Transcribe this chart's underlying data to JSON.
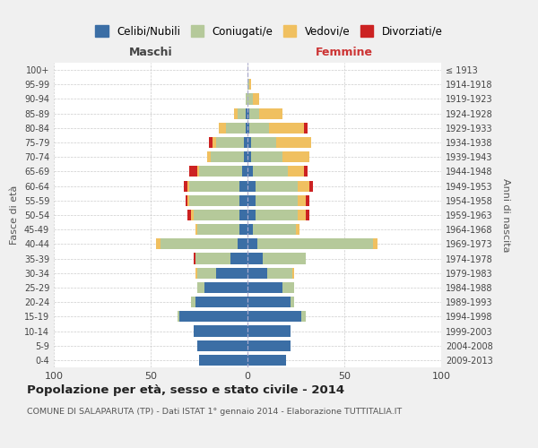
{
  "age_groups": [
    "0-4",
    "5-9",
    "10-14",
    "15-19",
    "20-24",
    "25-29",
    "30-34",
    "35-39",
    "40-44",
    "45-49",
    "50-54",
    "55-59",
    "60-64",
    "65-69",
    "70-74",
    "75-79",
    "80-84",
    "85-89",
    "90-94",
    "95-99",
    "100+"
  ],
  "birth_years": [
    "2009-2013",
    "2004-2008",
    "1999-2003",
    "1994-1998",
    "1989-1993",
    "1984-1988",
    "1979-1983",
    "1974-1978",
    "1969-1973",
    "1964-1968",
    "1959-1963",
    "1954-1958",
    "1949-1953",
    "1944-1948",
    "1939-1943",
    "1934-1938",
    "1929-1933",
    "1924-1928",
    "1919-1923",
    "1914-1918",
    "≤ 1913"
  ],
  "maschi": {
    "celibi": [
      25,
      26,
      28,
      35,
      27,
      22,
      16,
      9,
      5,
      4,
      4,
      4,
      4,
      3,
      2,
      2,
      1,
      1,
      0,
      0,
      0
    ],
    "coniugati": [
      0,
      0,
      0,
      1,
      2,
      4,
      10,
      18,
      40,
      22,
      24,
      26,
      26,
      22,
      17,
      14,
      10,
      4,
      1,
      0,
      0
    ],
    "vedovi": [
      0,
      0,
      0,
      0,
      0,
      0,
      1,
      0,
      2,
      1,
      1,
      1,
      1,
      1,
      2,
      2,
      4,
      2,
      0,
      0,
      0
    ],
    "divorziati": [
      0,
      0,
      0,
      0,
      0,
      0,
      0,
      1,
      0,
      0,
      2,
      1,
      2,
      4,
      0,
      2,
      0,
      0,
      0,
      0,
      0
    ]
  },
  "femmine": {
    "nubili": [
      20,
      22,
      22,
      28,
      22,
      18,
      10,
      8,
      5,
      3,
      4,
      4,
      4,
      3,
      2,
      2,
      1,
      1,
      0,
      0,
      0
    ],
    "coniugate": [
      0,
      0,
      0,
      2,
      2,
      6,
      13,
      22,
      60,
      22,
      22,
      22,
      22,
      18,
      16,
      13,
      10,
      5,
      3,
      1,
      0
    ],
    "vedove": [
      0,
      0,
      0,
      0,
      0,
      0,
      1,
      0,
      2,
      2,
      4,
      4,
      6,
      8,
      14,
      18,
      18,
      12,
      3,
      1,
      0
    ],
    "divorziate": [
      0,
      0,
      0,
      0,
      0,
      0,
      0,
      0,
      0,
      0,
      2,
      2,
      2,
      2,
      0,
      0,
      2,
      0,
      0,
      0,
      0
    ]
  },
  "color_celibi": "#3b6ea5",
  "color_coniugati": "#b5c99a",
  "color_vedovi": "#f0c060",
  "color_divorziati": "#cc2222",
  "title": "Popolazione per età, sesso e stato civile - 2014",
  "subtitle": "COMUNE DI SALAPARUTA (TP) - Dati ISTAT 1° gennaio 2014 - Elaborazione TUTTITALIA.IT",
  "xlabel_left": "Maschi",
  "xlabel_right": "Femmine",
  "ylabel_left": "Fasce di età",
  "ylabel_right": "Anni di nascita",
  "xlim": 100,
  "bg_color": "#f0f0f0",
  "plot_bg_color": "#ffffff"
}
